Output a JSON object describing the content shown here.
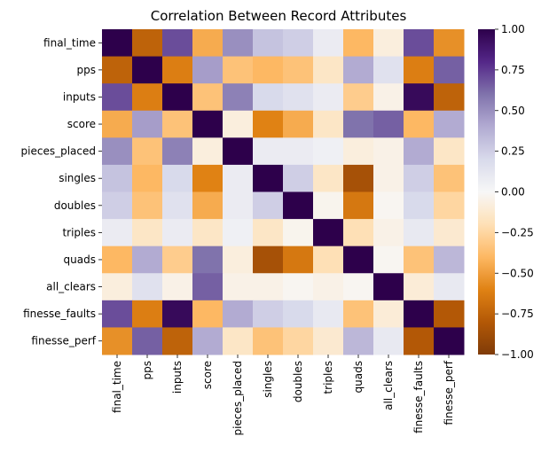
{
  "chart_data": {
    "type": "heatmap",
    "title": "Correlation Between Record Attributes",
    "xlabel": "",
    "ylabel": "",
    "labels": [
      "final_time",
      "pps",
      "inputs",
      "score",
      "pieces_placed",
      "singles",
      "doubles",
      "triples",
      "quads",
      "all_clears",
      "finesse_faults",
      "finesse_perf"
    ],
    "matrix": [
      [
        1.0,
        -0.75,
        0.7,
        -0.45,
        0.5,
        0.3,
        0.25,
        0.08,
        -0.4,
        -0.08,
        0.7,
        -0.55
      ],
      [
        -0.75,
        1.0,
        -0.62,
        0.45,
        -0.35,
        -0.4,
        -0.35,
        -0.15,
        0.4,
        0.15,
        -0.62,
        0.65
      ],
      [
        0.7,
        -0.62,
        1.0,
        -0.35,
        0.55,
        0.2,
        0.15,
        0.08,
        -0.3,
        -0.05,
        0.95,
        -0.75
      ],
      [
        -0.45,
        0.45,
        -0.35,
        1.0,
        -0.08,
        -0.6,
        -0.45,
        -0.15,
        0.6,
        0.65,
        -0.4,
        0.4
      ],
      [
        0.5,
        -0.35,
        0.55,
        -0.08,
        1.0,
        0.08,
        0.08,
        0.05,
        -0.08,
        -0.05,
        0.4,
        -0.15
      ],
      [
        0.3,
        -0.4,
        0.2,
        -0.6,
        0.08,
        1.0,
        0.25,
        -0.15,
        -0.85,
        -0.05,
        0.25,
        -0.35
      ],
      [
        0.25,
        -0.35,
        0.15,
        -0.45,
        0.08,
        0.25,
        1.0,
        -0.03,
        -0.65,
        -0.02,
        0.2,
        -0.25
      ],
      [
        0.08,
        -0.15,
        0.08,
        -0.15,
        0.05,
        -0.15,
        -0.03,
        1.0,
        -0.2,
        -0.05,
        0.1,
        -0.12
      ],
      [
        -0.4,
        0.4,
        -0.3,
        0.6,
        -0.08,
        -0.85,
        -0.65,
        -0.2,
        1.0,
        -0.02,
        -0.35,
        0.35
      ],
      [
        -0.08,
        0.15,
        -0.05,
        0.65,
        -0.05,
        -0.05,
        -0.02,
        -0.05,
        -0.02,
        1.0,
        -0.1,
        0.1
      ],
      [
        0.7,
        -0.62,
        0.95,
        -0.4,
        0.4,
        0.25,
        0.2,
        0.1,
        -0.35,
        -0.1,
        1.0,
        -0.8
      ],
      [
        -0.55,
        0.65,
        -0.75,
        0.4,
        -0.15,
        -0.35,
        -0.25,
        -0.12,
        0.35,
        0.1,
        -0.8,
        1.0
      ]
    ],
    "colorbar": {
      "range": [
        -1.0,
        1.0
      ],
      "ticks": [
        "−1.00",
        "−0.75",
        "−0.50",
        "−0.25",
        "0.00",
        "0.25",
        "0.50",
        "0.75",
        "1.00"
      ],
      "colormap": "PuOr"
    },
    "colors": {
      "neg": [
        "#f7f7f7",
        "#fee0b6",
        "#fdb863",
        "#e08214",
        "#b35806",
        "#7f3b08"
      ],
      "pos": [
        "#f7f7f7",
        "#d8daeb",
        "#b2abd2",
        "#8073ac",
        "#542788",
        "#2d004b"
      ]
    }
  }
}
